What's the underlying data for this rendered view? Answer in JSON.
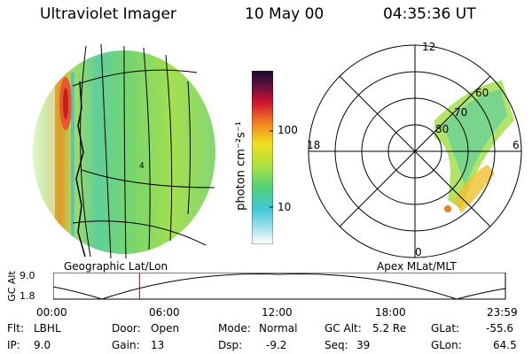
{
  "header": {
    "instrument": "Ultraviolet Imager",
    "date": "10 May 00",
    "time": "04:35:36 UT"
  },
  "colorbar": {
    "unit_label": "photon cm⁻²s⁻¹",
    "ticks": [
      "100",
      "10"
    ]
  },
  "left_panel": {
    "caption": "Geographic Lat/Lon",
    "marker": "4"
  },
  "right_panel": {
    "caption": "Apex MLat/MLT",
    "mlt_labels": {
      "top": "12",
      "left": "18",
      "right": "6",
      "bottom": "0"
    },
    "lat_labels": [
      "80",
      "70",
      "60"
    ]
  },
  "altitude_plot": {
    "ylabel": "GC Alt",
    "ymax": "9.0",
    "ymin": "1.8",
    "x_ticks": [
      "00:00",
      "06:00",
      "12:00",
      "18:00",
      "23:59"
    ],
    "current_time_fraction": 0.191
  },
  "footer": {
    "flt_label": "Flt:",
    "flt_value": "LBHL",
    "ip_label": "IP:",
    "ip_value": "9.0",
    "door_label": "Door:",
    "door_value": "Open",
    "gain_label": "Gain:",
    "gain_value": "13",
    "mode_label": "Mode:",
    "mode_value": "Normal",
    "dsp_label": "Dsp:",
    "dsp_value": "-9.2",
    "gcalt_label": "GC Alt:",
    "gcalt_value": "5.2 Re",
    "seq_label": "Seq:",
    "seq_value": "39",
    "glat_label": "GLat:",
    "glat_value": "-55.6",
    "glon_label": "GLon:",
    "glon_value": "64.5"
  },
  "colors": {
    "background": "#ffffff",
    "foreground": "#000000",
    "time_marker": "#dd0000"
  }
}
